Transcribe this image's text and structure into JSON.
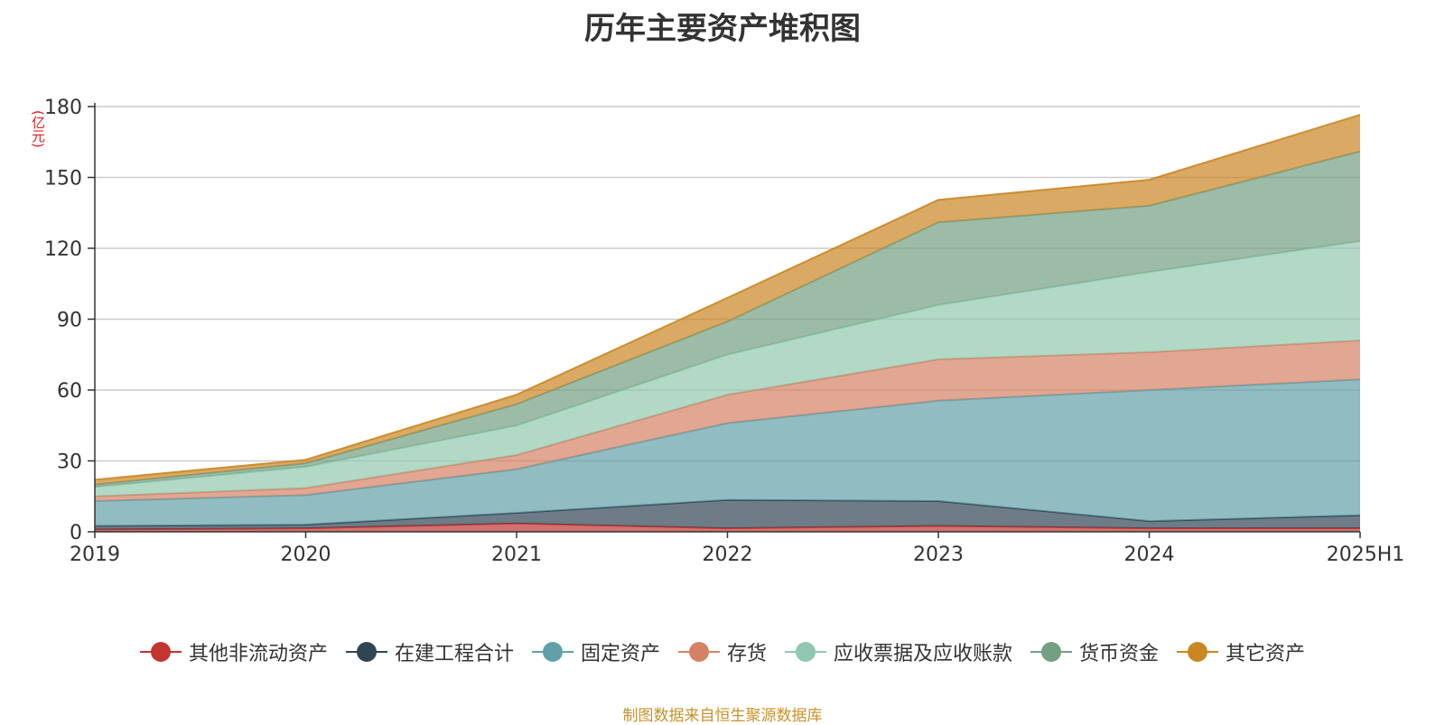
{
  "chart_data": {
    "type": "area",
    "stacked": true,
    "title": "历年主要资产堆积图",
    "unit_label": "(亿元)",
    "categories": [
      "2019",
      "2020",
      "2021",
      "2022",
      "2023",
      "2024",
      "2025H1"
    ],
    "ylim": [
      0,
      180
    ],
    "yticks": [
      0,
      30,
      60,
      90,
      120,
      150,
      180
    ],
    "grid": true,
    "legend_position": "bottom",
    "series": [
      {
        "name": "其他非流动资产",
        "color": "#c23531",
        "values": [
          1,
          1.5,
          3.5,
          1.5,
          2.5,
          1.5,
          1.5
        ]
      },
      {
        "name": "在建工程合计",
        "color": "#2f4554",
        "values": [
          1.5,
          1.5,
          4.5,
          12,
          10.5,
          3,
          5.5
        ]
      },
      {
        "name": "固定资产",
        "color": "#61a0a8",
        "values": [
          10.5,
          12.5,
          18.5,
          32.5,
          42.5,
          55.5,
          57.5
        ]
      },
      {
        "name": "存货",
        "color": "#d48265",
        "values": [
          2,
          3,
          6,
          12,
          17.5,
          16,
          16.5
        ]
      },
      {
        "name": "应收票据及应收账款",
        "color": "#91c7ae",
        "values": [
          4,
          9,
          12.5,
          17,
          23,
          34,
          42
        ]
      },
      {
        "name": "货币资金",
        "color": "#749f83",
        "values": [
          1,
          1.5,
          9,
          14,
          35,
          28,
          38
        ]
      },
      {
        "name": "其它资产",
        "color": "#ca8622",
        "values": [
          2,
          1.5,
          4,
          10,
          9.5,
          11,
          15.5
        ]
      }
    ]
  },
  "source_note": "制图数据来自恒生聚源数据库"
}
